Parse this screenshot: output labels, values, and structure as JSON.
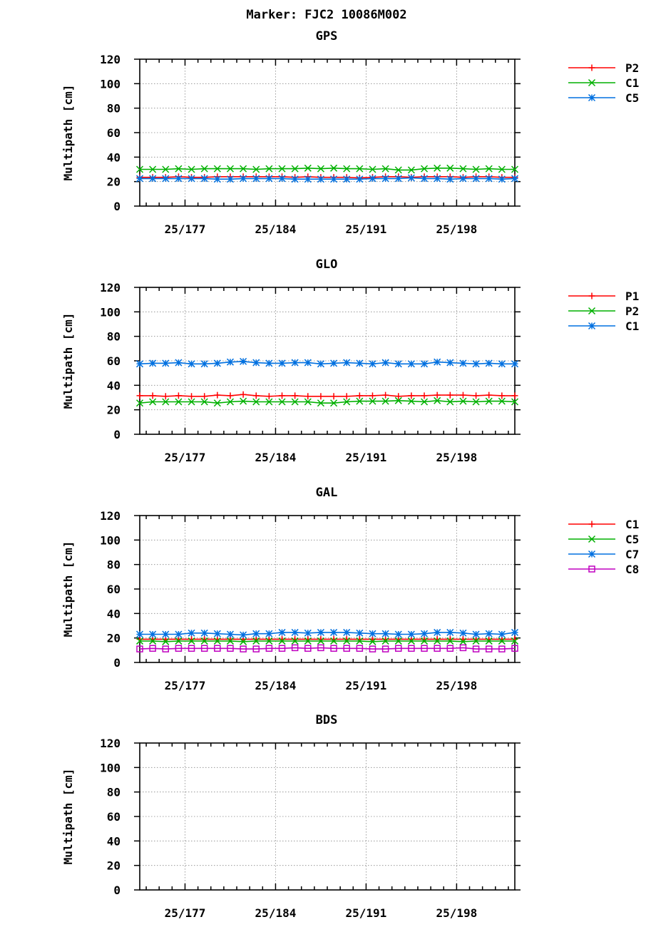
{
  "figure_title": "Marker: FJC2 10086M002",
  "chart_data": [
    {
      "type": "line",
      "title": "GPS",
      "ylabel": "Multipath [cm]",
      "xlabel": "",
      "ylim": [
        0,
        120
      ],
      "yticks": [
        0,
        20,
        40,
        60,
        80,
        100,
        120
      ],
      "xlim": [
        173.5,
        202.5
      ],
      "xticks": [
        177,
        184,
        191,
        198
      ],
      "xtick_labels": [
        "25/177",
        "25/184",
        "25/191",
        "25/198"
      ],
      "grid": true,
      "legend": "right",
      "x": [
        173.5,
        174.5,
        175.5,
        176.5,
        177.5,
        178.5,
        179.5,
        180.5,
        181.5,
        182.5,
        183.5,
        184.5,
        185.5,
        186.5,
        187.5,
        188.5,
        189.5,
        190.5,
        191.5,
        192.5,
        193.5,
        194.5,
        195.5,
        196.5,
        197.5,
        198.5,
        199.5,
        200.5,
        201.5,
        202.5
      ],
      "series": [
        {
          "name": "P2",
          "color": "#ff0000",
          "marker": "plus",
          "values": [
            23.5,
            23.5,
            23.5,
            24,
            23.5,
            23.5,
            24,
            24,
            24,
            24,
            24,
            24,
            23.5,
            24,
            23.5,
            23.5,
            23.5,
            23,
            23.5,
            24,
            24,
            23.5,
            24,
            24,
            24,
            23.5,
            24,
            24,
            23.5,
            23.5
          ]
        },
        {
          "name": "C1",
          "color": "#00b000",
          "marker": "cross",
          "values": [
            30,
            30,
            30,
            30.5,
            30,
            30.5,
            30.5,
            30.5,
            30.5,
            30,
            30.5,
            30.5,
            30.5,
            31,
            30.5,
            31,
            30.5,
            30.5,
            30,
            30.5,
            29.5,
            29.5,
            30.5,
            31,
            31,
            30.5,
            30,
            30.5,
            30,
            30
          ]
        },
        {
          "name": "C5",
          "color": "#0070e0",
          "marker": "star",
          "values": [
            22.5,
            22.5,
            22.5,
            22.5,
            22.5,
            22.5,
            22,
            22,
            22.5,
            22.5,
            22.5,
            22.5,
            22,
            22,
            22,
            22,
            22,
            22,
            22.5,
            22.5,
            22.5,
            23,
            22.5,
            22.5,
            22,
            22.5,
            22.5,
            22.5,
            22,
            22.5
          ]
        }
      ]
    },
    {
      "type": "line",
      "title": "GLO",
      "ylabel": "Multipath [cm]",
      "xlabel": "",
      "ylim": [
        0,
        120
      ],
      "yticks": [
        0,
        20,
        40,
        60,
        80,
        100,
        120
      ],
      "xlim": [
        173.5,
        202.5
      ],
      "xticks": [
        177,
        184,
        191,
        198
      ],
      "xtick_labels": [
        "25/177",
        "25/184",
        "25/191",
        "25/198"
      ],
      "grid": true,
      "legend": "right",
      "x": [
        173.5,
        174.5,
        175.5,
        176.5,
        177.5,
        178.5,
        179.5,
        180.5,
        181.5,
        182.5,
        183.5,
        184.5,
        185.5,
        186.5,
        187.5,
        188.5,
        189.5,
        190.5,
        191.5,
        192.5,
        193.5,
        194.5,
        195.5,
        196.5,
        197.5,
        198.5,
        199.5,
        200.5,
        201.5,
        202.5
      ],
      "series": [
        {
          "name": "P1",
          "color": "#ff0000",
          "marker": "plus",
          "values": [
            31.5,
            31.5,
            31,
            31.5,
            31,
            31,
            32,
            31.5,
            32.5,
            31.5,
            31,
            31.5,
            31.5,
            31,
            31,
            31,
            31,
            31.5,
            31.5,
            32,
            31,
            31.5,
            31.5,
            32,
            32,
            32,
            31.5,
            32,
            31.5,
            31.5
          ]
        },
        {
          "name": "P2",
          "color": "#00b000",
          "marker": "cross",
          "values": [
            25.5,
            26.5,
            26.5,
            26.5,
            26.5,
            26.5,
            25.5,
            26.5,
            27,
            26.5,
            26.5,
            26.5,
            26.5,
            26.5,
            25.5,
            25.5,
            26.5,
            27,
            27,
            27,
            27.5,
            27,
            26.5,
            27.5,
            26.5,
            27,
            26.5,
            27,
            27,
            26.5
          ]
        },
        {
          "name": "C1",
          "color": "#0070e0",
          "marker": "star",
          "values": [
            57.5,
            58,
            58,
            58.5,
            57.5,
            57.5,
            58,
            59,
            59.5,
            58.5,
            58,
            58,
            58.5,
            58.5,
            57.5,
            58,
            58.5,
            58,
            57.5,
            58.5,
            57.5,
            57.5,
            57.5,
            59,
            58.5,
            58,
            57.5,
            58,
            57.5,
            57.5
          ]
        }
      ]
    },
    {
      "type": "line",
      "title": "GAL",
      "ylabel": "Multipath [cm]",
      "xlabel": "",
      "ylim": [
        0,
        120
      ],
      "yticks": [
        0,
        20,
        40,
        60,
        80,
        100,
        120
      ],
      "xlim": [
        173.5,
        202.5
      ],
      "xticks": [
        177,
        184,
        191,
        198
      ],
      "xtick_labels": [
        "25/177",
        "25/184",
        "25/191",
        "25/198"
      ],
      "grid": true,
      "legend": "right",
      "x": [
        173.5,
        174.5,
        175.5,
        176.5,
        177.5,
        178.5,
        179.5,
        180.5,
        181.5,
        182.5,
        183.5,
        184.5,
        185.5,
        186.5,
        187.5,
        188.5,
        189.5,
        190.5,
        191.5,
        192.5,
        193.5,
        194.5,
        195.5,
        196.5,
        197.5,
        198.5,
        199.5,
        200.5,
        201.5,
        202.5
      ],
      "series": [
        {
          "name": "C1",
          "color": "#ff0000",
          "marker": "plus",
          "values": [
            19,
            19,
            19,
            19,
            19,
            19,
            19,
            19,
            19,
            19,
            19,
            19,
            19,
            19,
            19,
            19,
            19,
            19,
            19,
            19,
            19,
            19,
            19,
            19,
            19,
            19,
            19,
            19,
            19,
            19
          ]
        },
        {
          "name": "C5",
          "color": "#00b000",
          "marker": "cross",
          "values": [
            17.5,
            17.5,
            17,
            17.5,
            17.5,
            17.5,
            17.5,
            17.5,
            17,
            17.5,
            17.5,
            17.5,
            17.5,
            17.5,
            17.5,
            17.5,
            17.5,
            17.5,
            17,
            17.5,
            17.5,
            17.5,
            17.5,
            17.5,
            17.5,
            17,
            17.5,
            17.5,
            17.5,
            17.5
          ]
        },
        {
          "name": "C7",
          "color": "#0070e0",
          "marker": "star",
          "values": [
            23,
            23,
            23,
            23,
            24,
            24,
            23.5,
            23,
            22.5,
            23.5,
            23.5,
            24.5,
            24.5,
            24,
            24.5,
            24.5,
            24.5,
            24,
            23.5,
            23.5,
            23,
            23,
            23.5,
            24.5,
            24.5,
            24,
            23,
            23.5,
            23,
            24.5
          ]
        },
        {
          "name": "C8",
          "color": "#c000c0",
          "marker": "square",
          "values": [
            11,
            11.5,
            11,
            11.5,
            11.5,
            11.5,
            11.5,
            11.5,
            11,
            11,
            11.5,
            11.5,
            12,
            11.5,
            12,
            11.5,
            11.5,
            11.5,
            11,
            11,
            11.5,
            11.5,
            11.5,
            11.5,
            11.5,
            12,
            11,
            11,
            11,
            11.5
          ]
        }
      ]
    },
    {
      "type": "line",
      "title": "BDS",
      "ylabel": "Multipath [cm]",
      "xlabel": "",
      "ylim": [
        0,
        120
      ],
      "yticks": [
        0,
        20,
        40,
        60,
        80,
        100,
        120
      ],
      "xlim": [
        173.5,
        202.5
      ],
      "xticks": [
        177,
        184,
        191,
        198
      ],
      "xtick_labels": [
        "25/177",
        "25/184",
        "25/191",
        "25/198"
      ],
      "grid": true,
      "legend": "none",
      "x": [],
      "series": []
    }
  ]
}
